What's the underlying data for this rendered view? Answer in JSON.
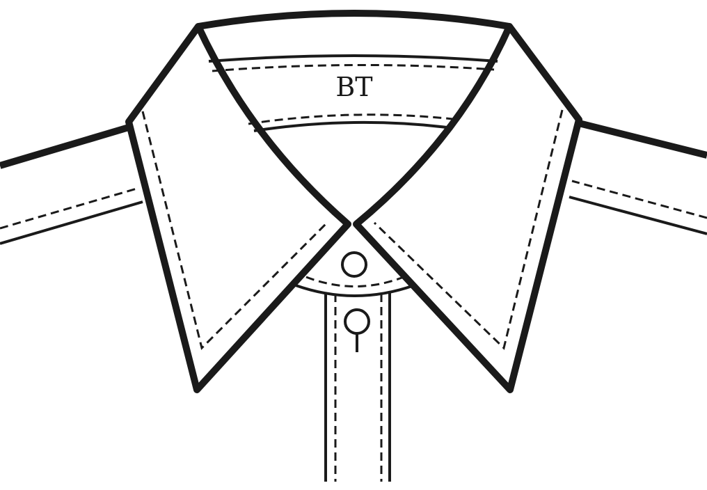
{
  "diagram": {
    "label": "BT"
  },
  "colors": {
    "line": "#1a1a1a",
    "background": "#ffffff"
  }
}
